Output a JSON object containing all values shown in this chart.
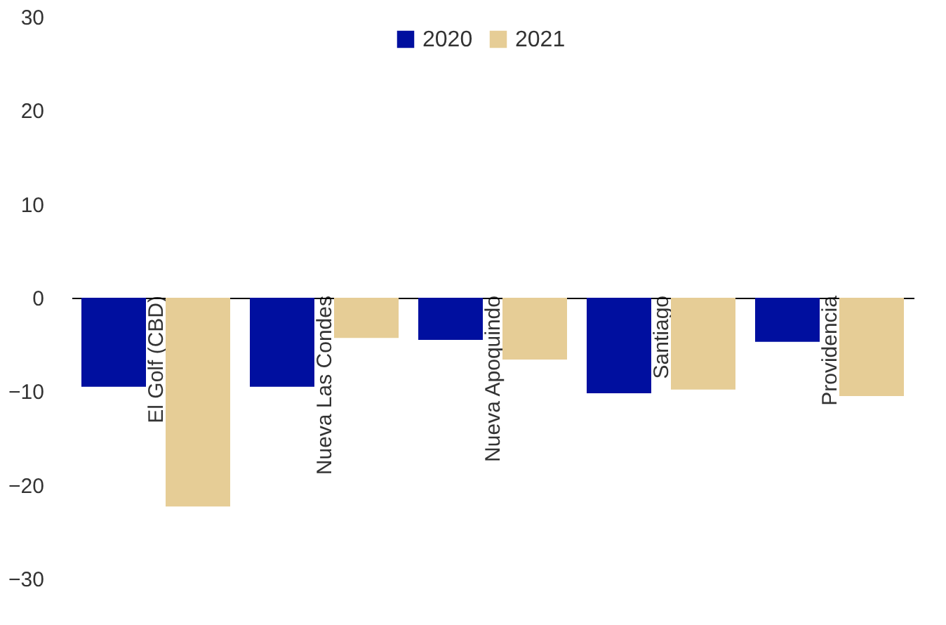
{
  "chart_data": {
    "type": "bar",
    "categories": [
      "El Golf (CBD)",
      "Nueva Las Condes",
      "Nueva Apoquindo",
      "Santiago",
      "Providencia"
    ],
    "series": [
      {
        "name": "2020",
        "color": "#000f9f",
        "values": [
          -9.5,
          -9.5,
          -4.5,
          -10.2,
          -4.7
        ]
      },
      {
        "name": "2021",
        "color": "#e6cd96",
        "values": [
          -22.3,
          -4.3,
          -6.6,
          -9.8,
          -10.5
        ]
      }
    ],
    "ylim": [
      -30,
      30
    ],
    "yticks": [
      -30,
      -20,
      -10,
      0,
      10,
      20,
      30
    ],
    "grid": false,
    "legend": "top"
  }
}
